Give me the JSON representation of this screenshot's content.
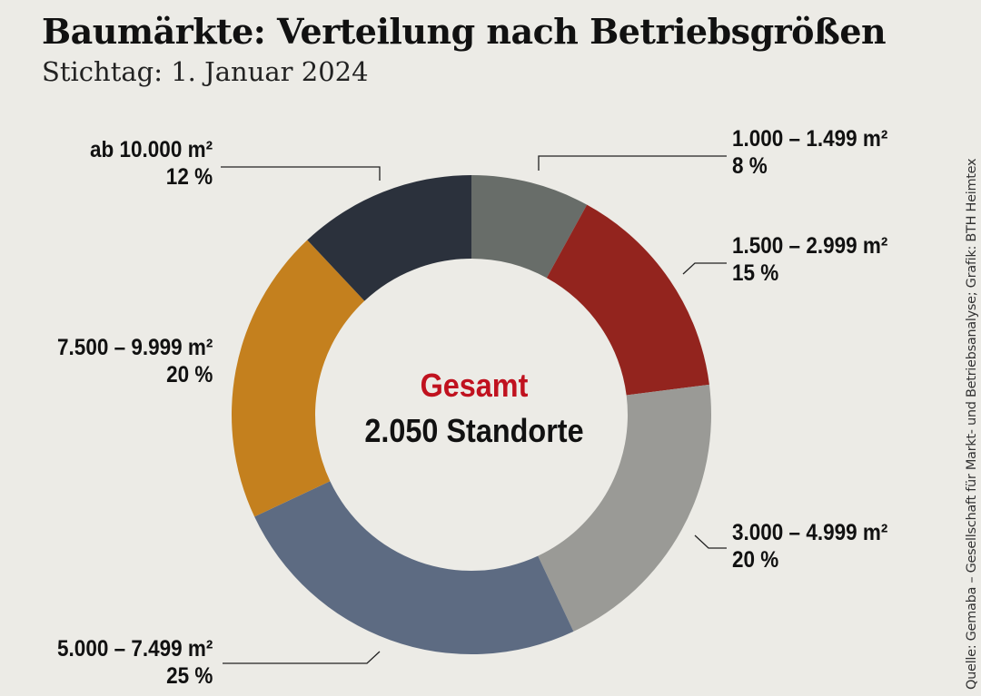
{
  "title": "Baumärkte: Verteilung nach Betriebsgrößen",
  "subtitle": "Stichtag: 1. Januar 2024",
  "source": "Quelle: Gemaba – Gesellschaft für Markt- und Betriebsanalyse; Grafik: BTH Heimtex",
  "chart_data": {
    "type": "pie",
    "donut": true,
    "center_label": "Gesamt",
    "center_value": "2.050 Standorte",
    "center_label_color": "#c0121f",
    "slices": [
      {
        "label": "1.000 – 1.499 m²",
        "value": 8,
        "value_label": "8 %",
        "color": "#686d69"
      },
      {
        "label": "1.500 – 2.999 m²",
        "value": 15,
        "value_label": "15 %",
        "color": "#93241e"
      },
      {
        "label": "3.000 – 4.999 m²",
        "value": 20,
        "value_label": "20 %",
        "color": "#9a9a96"
      },
      {
        "label": "5.000 – 7.499 m²",
        "value": 25,
        "value_label": "25 %",
        "color": "#5d6b82"
      },
      {
        "label": "7.500 – 9.999 m²",
        "value": 20,
        "value_label": "20 %",
        "color": "#c4801e"
      },
      {
        "label": "ab 10.000 m²",
        "value": 12,
        "value_label": "12 %",
        "color": "#2b313c"
      }
    ]
  }
}
